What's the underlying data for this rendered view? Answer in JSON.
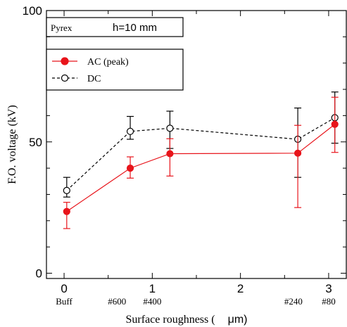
{
  "chart_data": {
    "type": "line",
    "title": "",
    "xlabel_text": "Surface roughness (",
    "xlabel_unit": "μm)",
    "ylabel": "F.O. voltage (kV)",
    "xlim": [
      -0.2,
      3.2
    ],
    "ylim": [
      -2,
      100
    ],
    "x_ticks": [
      {
        "value": 0,
        "label": "0"
      },
      {
        "value": 1,
        "label": "1"
      },
      {
        "value": 2,
        "label": "2"
      },
      {
        "value": 3,
        "label": "3"
      }
    ],
    "y_ticks": [
      {
        "value": 0,
        "label": "0"
      },
      {
        "value": 50,
        "label": "50"
      },
      {
        "value": 100,
        "label": "100"
      }
    ],
    "sample_labels": [
      {
        "x": 0.0,
        "label": "Buff"
      },
      {
        "x": 0.6,
        "label": "#600"
      },
      {
        "x": 1.0,
        "label": "#400"
      },
      {
        "x": 2.6,
        "label": "#240"
      },
      {
        "x": 3.0,
        "label": "#80"
      }
    ],
    "annotation": {
      "material": "Pyrex",
      "condition": "h=10 mm"
    },
    "legend_position": "top-left",
    "grid": false,
    "series": [
      {
        "name": "AC (peak)",
        "color": "#e8141b",
        "marker": "filled-circle",
        "line_style": "solid",
        "x": [
          0.03,
          0.75,
          1.2,
          2.65,
          3.07
        ],
        "y": [
          23.5,
          40.0,
          45.5,
          45.7,
          56.7
        ],
        "err_low": [
          17.0,
          36.2,
          37.0,
          25.0,
          46.0
        ],
        "err_high": [
          27.0,
          44.3,
          51.2,
          56.3,
          67.0
        ]
      },
      {
        "name": "DC",
        "color": "#000000",
        "marker": "open-circle",
        "line_style": "dashed",
        "x": [
          0.03,
          0.75,
          1.2,
          2.65,
          3.07
        ],
        "y": [
          31.5,
          54.0,
          55.2,
          51.0,
          59.2
        ],
        "err_low": [
          29.0,
          51.0,
          47.5,
          36.5,
          49.5
        ],
        "err_high": [
          36.5,
          59.7,
          61.7,
          62.9,
          69.0
        ]
      }
    ]
  }
}
